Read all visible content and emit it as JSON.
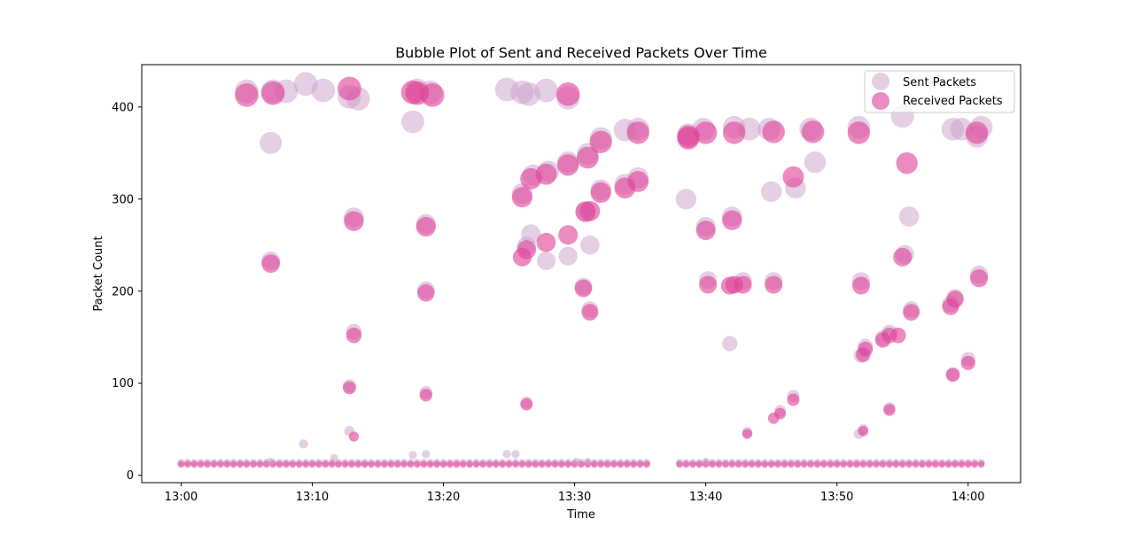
{
  "chart_data": {
    "type": "scatter",
    "title": "Bubble Plot of Sent and Received Packets Over Time",
    "xlabel": "Time",
    "ylabel": "Packet Count",
    "xlim": [
      "12:57:00",
      "14:04:00"
    ],
    "ylim": [
      -8,
      446
    ],
    "x_ticks": [
      "13:00",
      "13:10",
      "13:20",
      "13:30",
      "13:40",
      "13:50",
      "14:00"
    ],
    "y_ticks": [
      0,
      100,
      200,
      300,
      400
    ],
    "grid": false,
    "legend_position": "top-right",
    "series": [
      {
        "name": "Sent Packets",
        "color": "#c9a0c9",
        "points": [
          [
            "13:05:00",
            417
          ],
          [
            "13:06:50",
            361
          ],
          [
            "13:07:00",
            417
          ],
          [
            "13:08:00",
            417
          ],
          [
            "13:09:30",
            425
          ],
          [
            "13:10:50",
            418
          ],
          [
            "13:12:50",
            411
          ],
          [
            "13:13:30",
            409
          ],
          [
            "13:17:40",
            384
          ],
          [
            "13:18:00",
            418
          ],
          [
            "13:19:00",
            416
          ],
          [
            "13:24:50",
            419
          ],
          [
            "13:26:00",
            416
          ],
          [
            "13:26:30",
            414
          ],
          [
            "13:27:50",
            418
          ],
          [
            "13:29:30",
            410
          ],
          [
            "13:06:50",
            233
          ],
          [
            "13:13:10",
            280
          ],
          [
            "13:13:10",
            156
          ],
          [
            "13:12:50",
            97
          ],
          [
            "13:12:50",
            48
          ],
          [
            "13:18:40",
            273
          ],
          [
            "13:18:40",
            201
          ],
          [
            "13:18:40",
            90
          ],
          [
            "13:26:00",
            306
          ],
          [
            "13:26:20",
            249
          ],
          [
            "13:26:20",
            79
          ],
          [
            "13:26:40",
            262
          ],
          [
            "13:26:50",
            326
          ],
          [
            "13:27:50",
            233
          ],
          [
            "13:28:00",
            330
          ],
          [
            "13:29:30",
            340
          ],
          [
            "13:29:30",
            238
          ],
          [
            "13:30:40",
            205
          ],
          [
            "13:30:50",
            287
          ],
          [
            "13:31:00",
            349
          ],
          [
            "13:31:10",
            250
          ],
          [
            "13:31:10",
            180
          ],
          [
            "13:32:00",
            366
          ],
          [
            "13:32:00",
            310
          ],
          [
            "13:33:50",
            375
          ],
          [
            "13:33:50",
            316
          ],
          [
            "13:34:50",
            376
          ],
          [
            "13:34:50",
            323
          ],
          [
            "13:38:30",
            300
          ],
          [
            "13:38:40",
            370
          ],
          [
            "13:39:50",
            376
          ],
          [
            "13:40:00",
            270
          ],
          [
            "13:40:10",
            212
          ],
          [
            "13:42:00",
            281
          ],
          [
            "13:41:50",
            143
          ],
          [
            "13:42:10",
            378
          ],
          [
            "13:42:50",
            211
          ],
          [
            "13:43:20",
            376
          ],
          [
            "13:44:50",
            376
          ],
          [
            "13:45:00",
            308
          ],
          [
            "13:45:10",
            211
          ],
          [
            "13:46:50",
            312
          ],
          [
            "13:48:00",
            376
          ],
          [
            "13:48:20",
            340
          ],
          [
            "13:51:40",
            378
          ],
          [
            "13:51:50",
            211
          ],
          [
            "13:52:00",
            50
          ],
          [
            "13:54:00",
            155
          ],
          [
            "13:54:00",
            73
          ],
          [
            "13:55:00",
            390
          ],
          [
            "13:55:10",
            240
          ],
          [
            "13:55:30",
            281
          ],
          [
            "13:55:40",
            180
          ],
          [
            "13:58:50",
            376
          ],
          [
            "13:59:30",
            376
          ],
          [
            "14:00:40",
            368
          ],
          [
            "14:01:00",
            378
          ],
          [
            "14:00:50",
            218
          ],
          [
            "14:00:00",
            126
          ],
          [
            "13:59:00",
            193
          ],
          [
            "13:58:40",
            186
          ],
          [
            "13:46:40",
            86
          ],
          [
            "13:45:40",
            70
          ],
          [
            "13:43:10",
            47
          ],
          [
            "13:53:30",
            149
          ],
          [
            "13:52:10",
            140
          ],
          [
            "13:51:50",
            130
          ],
          [
            "13:51:40",
            45
          ],
          [
            "13:58:50",
            110
          ],
          [
            "13:09:20",
            34
          ],
          [
            "13:11:40",
            19
          ],
          [
            "13:17:40",
            22
          ],
          [
            "13:18:40",
            23
          ],
          [
            "13:24:50",
            23
          ],
          [
            "13:25:30",
            23
          ],
          [
            "13:06:50",
            15
          ],
          [
            "13:30:10",
            15
          ],
          [
            "13:31:00",
            15
          ],
          [
            "13:40:00",
            15
          ]
        ]
      },
      {
        "name": "Received Packets",
        "color": "#e0439a",
        "points": [
          [
            "13:05:00",
            413
          ],
          [
            "13:07:00",
            415
          ],
          [
            "13:12:50",
            420
          ],
          [
            "13:17:40",
            416
          ],
          [
            "13:18:00",
            415
          ],
          [
            "13:19:10",
            413
          ],
          [
            "13:29:30",
            414
          ],
          [
            "13:06:50",
            230
          ],
          [
            "13:13:10",
            276
          ],
          [
            "13:13:10",
            152
          ],
          [
            "13:12:50",
            95
          ],
          [
            "13:13:10",
            42
          ],
          [
            "13:18:40",
            270
          ],
          [
            "13:18:40",
            198
          ],
          [
            "13:18:40",
            87
          ],
          [
            "13:26:00",
            302
          ],
          [
            "13:26:00",
            237
          ],
          [
            "13:26:20",
            245
          ],
          [
            "13:26:20",
            77
          ],
          [
            "13:26:40",
            322
          ],
          [
            "13:27:50",
            327
          ],
          [
            "13:27:50",
            253
          ],
          [
            "13:29:30",
            337
          ],
          [
            "13:29:30",
            261
          ],
          [
            "13:30:40",
            203
          ],
          [
            "13:30:50",
            286
          ],
          [
            "13:31:00",
            345
          ],
          [
            "13:31:10",
            177
          ],
          [
            "13:31:10",
            287
          ],
          [
            "13:32:00",
            362
          ],
          [
            "13:32:00",
            307
          ],
          [
            "13:33:50",
            312
          ],
          [
            "13:34:50",
            372
          ],
          [
            "13:34:50",
            319
          ],
          [
            "13:38:40",
            368
          ],
          [
            "13:38:40",
            366
          ],
          [
            "13:40:00",
            372
          ],
          [
            "13:40:00",
            266
          ],
          [
            "13:40:10",
            207
          ],
          [
            "13:41:50",
            206
          ],
          [
            "13:42:00",
            277
          ],
          [
            "13:42:10",
            372
          ],
          [
            "13:42:10",
            207
          ],
          [
            "13:42:50",
            207
          ],
          [
            "13:43:10",
            45
          ],
          [
            "13:45:10",
            373
          ],
          [
            "13:45:10",
            207
          ],
          [
            "13:45:10",
            62
          ],
          [
            "13:45:40",
            67
          ],
          [
            "13:46:40",
            324
          ],
          [
            "13:46:40",
            82
          ],
          [
            "13:48:10",
            373
          ],
          [
            "13:51:40",
            372
          ],
          [
            "13:51:50",
            206
          ],
          [
            "13:52:00",
            131
          ],
          [
            "13:52:10",
            137
          ],
          [
            "13:52:00",
            48
          ],
          [
            "13:53:30",
            147
          ],
          [
            "13:54:00",
            152
          ],
          [
            "13:54:00",
            71
          ],
          [
            "13:54:40",
            152
          ],
          [
            "13:55:00",
            237
          ],
          [
            "13:55:20",
            339
          ],
          [
            "13:55:40",
            177
          ],
          [
            "13:58:40",
            183
          ],
          [
            "13:58:50",
            109
          ],
          [
            "13:59:00",
            191
          ],
          [
            "14:00:00",
            122
          ],
          [
            "14:00:50",
            214
          ],
          [
            "14:00:40",
            372
          ]
        ]
      }
    ],
    "baseline": {
      "sent_value": 14,
      "received_value": 12,
      "start": "13:00:00",
      "end": "14:01:00",
      "step_seconds": 30,
      "gap": [
        "13:35:30",
        "13:38:00"
      ]
    }
  }
}
